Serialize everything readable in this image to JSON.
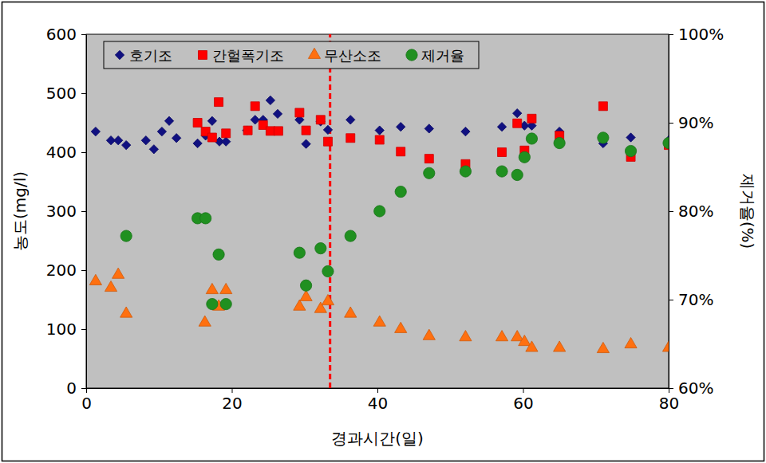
{
  "chart_data": {
    "type": "scatter",
    "x_label": "경과시간(일)",
    "y_label": "농도(mg/l)",
    "y2_label": "제거율(%)",
    "xlim": [
      0,
      80
    ],
    "xticks": [
      0,
      20,
      40,
      60,
      80
    ],
    "ylim": [
      0,
      600
    ],
    "yticks": [
      0,
      100,
      200,
      300,
      400,
      500,
      600
    ],
    "y2lim": [
      60,
      100
    ],
    "y2ticks": [
      {
        "value": 60,
        "label": "60%"
      },
      {
        "value": 70,
        "label": "70%"
      },
      {
        "value": 80,
        "label": "80%"
      },
      {
        "value": 90,
        "label": "90%"
      },
      {
        "value": 100,
        "label": "100%"
      }
    ],
    "grid": false,
    "legend": "top-left",
    "vline": {
      "x": 33.5,
      "color": "#ff0000",
      "line_style": "dashed"
    },
    "series": [
      {
        "name": "호기조",
        "color": "#101080",
        "marker": "diamond",
        "x": [
          1.3,
          3.4,
          4.4,
          5.5,
          8.2,
          9.3,
          10.4,
          11.4,
          12.4,
          15.3,
          16.4,
          17.3,
          18.3,
          19.2,
          22.1,
          23.2,
          24.3,
          25.3,
          26.3,
          29.3,
          30.2,
          32.2,
          33.2,
          36.3,
          40.3,
          43.2,
          47.1,
          52.1,
          57.1,
          59.2,
          60.2,
          61.2,
          65.0,
          71.0,
          74.8,
          80
        ],
        "values": [
          435,
          420,
          420,
          412,
          420,
          405,
          435,
          453,
          424,
          415,
          428,
          453,
          418,
          418,
          437,
          455,
          455,
          488,
          465,
          455,
          414,
          452,
          438,
          455,
          437,
          443,
          440,
          435,
          443,
          466,
          445,
          445,
          435,
          415,
          425,
          420
        ]
      },
      {
        "name": "간헐폭기조",
        "color": "#ff0000",
        "marker": "square",
        "x": [
          15.3,
          16.4,
          17.3,
          18.2,
          19.2,
          22.2,
          23.2,
          24.3,
          25.3,
          26.4,
          29.3,
          30.2,
          32.2,
          33.2,
          36.3,
          40.3,
          43.2,
          47.1,
          52.1,
          57.1,
          59.2,
          60.2,
          61.2,
          65.0,
          71.0,
          74.8,
          80
        ],
        "values": [
          450,
          435,
          425,
          485,
          432,
          437,
          478,
          446,
          436,
          436,
          467,
          437,
          455,
          418,
          424,
          421,
          401,
          389,
          380,
          400,
          449,
          403,
          457,
          428,
          478,
          392,
          412
        ]
      },
      {
        "name": "무산소조",
        "color": "#ff7010",
        "marker": "triangle",
        "x": [
          1.3,
          3.4,
          4.4,
          5.5,
          16.3,
          17.3,
          18.2,
          19.2,
          29.3,
          30.2,
          32.2,
          33.2,
          36.3,
          40.3,
          43.2,
          47.1,
          52.1,
          57.1,
          59.2,
          60.2,
          61.2,
          65.0,
          71.0,
          74.8,
          80
        ],
        "values": [
          181,
          170,
          192,
          126,
          111,
          166,
          138,
          166,
          138,
          154,
          134,
          147,
          126,
          111,
          100,
          88,
          86,
          86,
          86,
          78,
          68,
          68,
          66,
          74,
          68
        ]
      },
      {
        "name": "제거율",
        "color": "#209020",
        "marker": "circle",
        "axis": "y2",
        "x": [
          5.5,
          15.3,
          16.4,
          17.3,
          18.2,
          19.2,
          29.3,
          30.2,
          32.2,
          33.2,
          36.3,
          40.3,
          43.2,
          47.1,
          52.1,
          57.1,
          59.2,
          60.2,
          61.2,
          65.0,
          71.0,
          74.8,
          80
        ],
        "values": [
          77.2,
          79.2,
          79.2,
          69.5,
          75.1,
          69.5,
          75.3,
          71.6,
          75.8,
          73.2,
          77.2,
          80.0,
          82.2,
          84.3,
          84.5,
          84.5,
          84.1,
          86.1,
          88.2,
          87.7,
          88.3,
          86.8,
          87.7
        ]
      }
    ]
  }
}
